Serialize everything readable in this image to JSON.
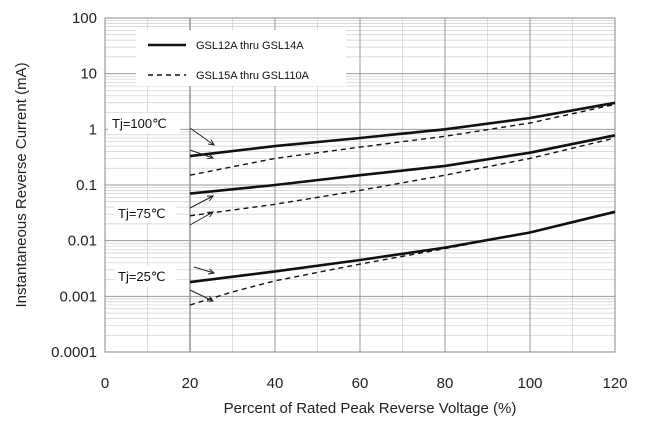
{
  "chart_data": {
    "type": "line",
    "xlabel": "Percent of  Rated Peak Reverse Voltage (%)",
    "ylabel": "Instantaneous Reverse Current (mA)",
    "xlim": [
      0,
      120
    ],
    "ylim": [
      0.0001,
      100
    ],
    "yscale": "log",
    "x_ticks": [
      "0",
      "20",
      "40",
      "60",
      "80",
      "100",
      "120"
    ],
    "y_ticks": [
      "100",
      "10",
      "1",
      "0.1",
      "0.01",
      "0.001",
      "0.0001"
    ],
    "grid": true,
    "legend_position": "top-left",
    "series": [
      {
        "name": "GSL12A thru GSL14A",
        "group": "Tj=100℃",
        "style": "solid",
        "x": [
          20,
          40,
          60,
          80,
          100,
          120
        ],
        "y": [
          0.33,
          0.5,
          0.7,
          1.0,
          1.6,
          3.0
        ]
      },
      {
        "name": "GSL15A thru GSL110A",
        "group": "Tj=100℃",
        "style": "dashed",
        "x": [
          20,
          40,
          60,
          80,
          100,
          120
        ],
        "y": [
          0.15,
          0.3,
          0.48,
          0.75,
          1.3,
          2.8
        ]
      },
      {
        "name": "GSL12A thru GSL14A",
        "group": "Tj=75℃",
        "style": "solid",
        "x": [
          20,
          40,
          60,
          80,
          100,
          120
        ],
        "y": [
          0.07,
          0.1,
          0.15,
          0.22,
          0.38,
          0.78
        ]
      },
      {
        "name": "GSL15A thru GSL110A",
        "group": "Tj=75℃",
        "style": "dashed",
        "x": [
          20,
          40,
          60,
          80,
          100,
          120
        ],
        "y": [
          0.028,
          0.045,
          0.08,
          0.15,
          0.3,
          0.7
        ]
      },
      {
        "name": "GSL12A thru GSL14A",
        "group": "Tj=25℃",
        "style": "solid",
        "x": [
          20,
          40,
          60,
          80,
          100,
          120
        ],
        "y": [
          0.0018,
          0.0028,
          0.0045,
          0.0075,
          0.014,
          0.033
        ]
      },
      {
        "name": "GSL15A thru GSL110A",
        "group": "Tj=25℃",
        "style": "dashed",
        "x": [
          20,
          30,
          40,
          60,
          80,
          100,
          120
        ],
        "y": [
          0.0007,
          0.0012,
          0.0019,
          0.0038,
          0.0072,
          0.014,
          0.033
        ]
      }
    ],
    "legend": [
      {
        "label": "GSL12A thru GSL14A",
        "style": "solid"
      },
      {
        "label": "GSL15A thru GSL110A",
        "style": "dashed"
      }
    ],
    "annotations": [
      "Tj=100℃",
      "Tj=75℃",
      "Tj=25℃"
    ]
  },
  "colors": {
    "line": "#111111",
    "grid_major": "#9a9a9a",
    "grid_minor": "#cfcfcf",
    "frame": "#8a8a8a"
  }
}
